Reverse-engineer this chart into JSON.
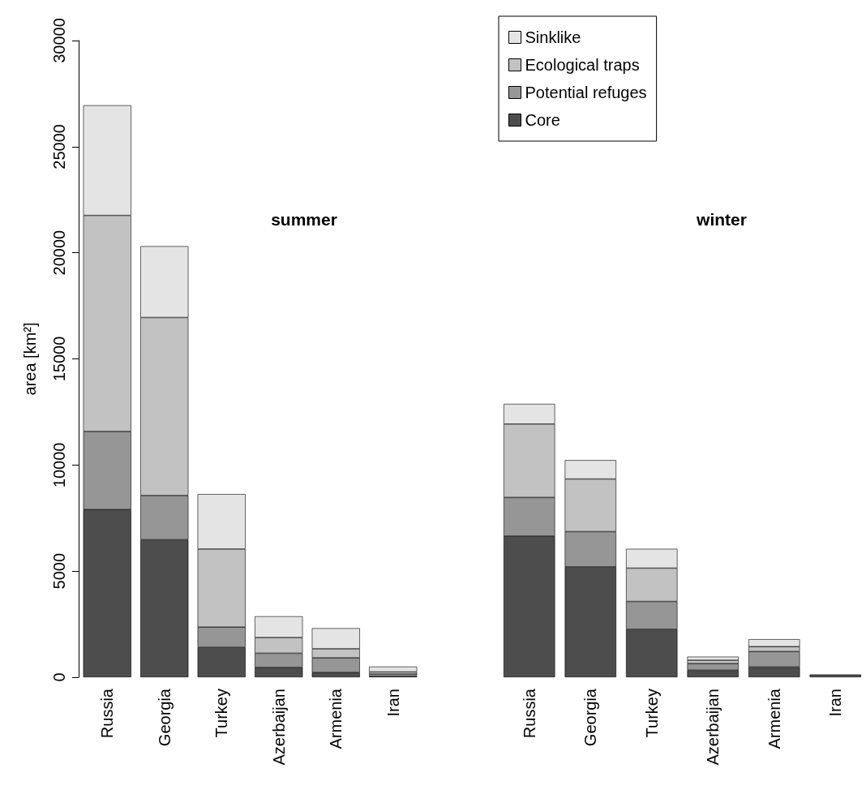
{
  "chart_data": [
    {
      "type": "bar",
      "title": "summer",
      "ylabel": "area [km²]",
      "categories": [
        "Russia",
        "Georgia",
        "Turkey",
        "Azerbaijan",
        "Armenia",
        "Iran"
      ],
      "stacked": true,
      "ylim": [
        0,
        30000
      ],
      "yticks": [
        0,
        5000,
        10000,
        15000,
        20000,
        25000,
        30000
      ],
      "series": [
        {
          "color": "#4d4d4d",
          "values": [
            7900,
            6480,
            1410,
            460,
            220,
            50
          ]
        },
        {
          "color": "#969696",
          "values": [
            3680,
            2080,
            950,
            670,
            690,
            100
          ]
        },
        {
          "color": "#c2c2c2",
          "values": [
            10180,
            8390,
            3680,
            740,
            430,
            100
          ]
        },
        {
          "color": "#e4e4e4",
          "values": [
            5190,
            3360,
            2590,
            1000,
            970,
            250
          ]
        }
      ]
    },
    {
      "type": "bar",
      "title": "winter",
      "categories": [
        "Russia",
        "Georgia",
        "Turkey",
        "Azerbaijan",
        "Armenia",
        "Iran"
      ],
      "stacked": true,
      "ylim": [
        0,
        30000
      ],
      "yticks": [
        0,
        5000,
        10000,
        15000,
        20000,
        25000,
        30000
      ],
      "tick_labels": "x",
      "legend": "top left",
      "series": [
        {
          "name": "Core",
          "color": "#4d4d4d",
          "values": [
            6650,
            5200,
            2260,
            330,
            480,
            130
          ]
        },
        {
          "name": "Potential refuges",
          "color": "#969696",
          "values": [
            1820,
            1660,
            1310,
            310,
            730,
            null
          ]
        },
        {
          "name": "Ecological traps",
          "color": "#c2c2c2",
          "values": [
            3460,
            2480,
            1570,
            160,
            230,
            null
          ]
        },
        {
          "name": "Sinklike",
          "color": "#e4e4e4",
          "values": [
            950,
            890,
            910,
            170,
            350,
            null
          ]
        }
      ]
    }
  ]
}
